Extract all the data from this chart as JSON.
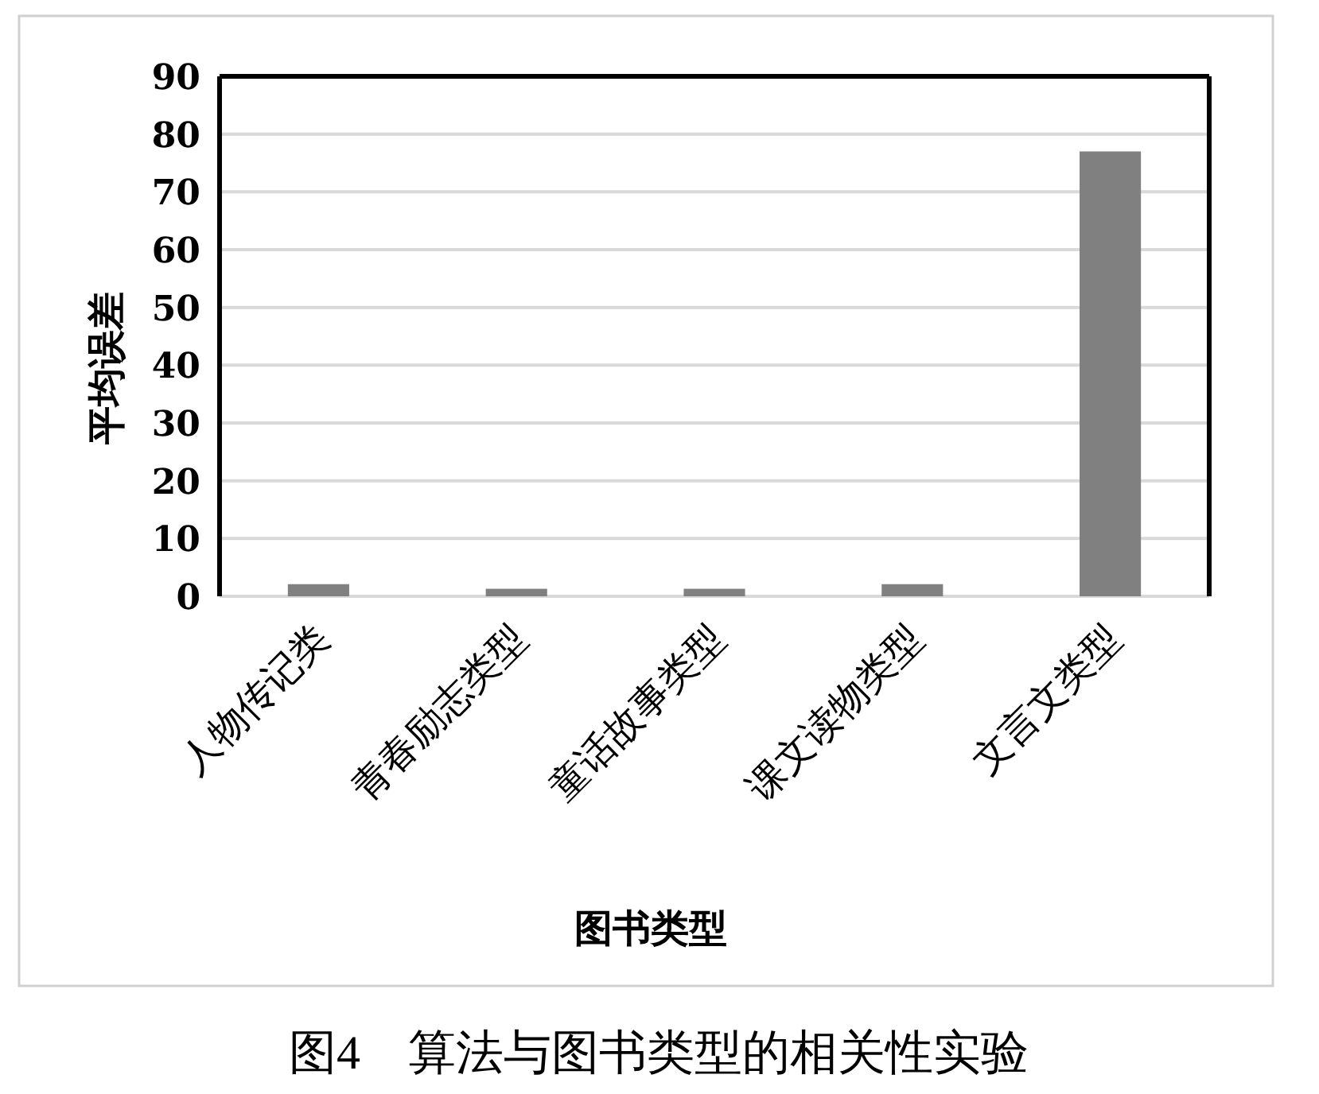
{
  "chart_data": {
    "type": "bar",
    "categories": [
      "人物传记类",
      "青春励志类型",
      "童话故事类型",
      "课文读物类型",
      "文言文类型"
    ],
    "values": [
      2.1,
      1.3,
      1.3,
      2.1,
      77
    ],
    "color": "#808080",
    "xlabel": "图书类型",
    "ylabel": "平均误差",
    "ylim": [
      0,
      90
    ],
    "yticks": [
      0,
      10,
      20,
      30,
      40,
      50,
      60,
      70,
      80,
      90
    ],
    "grid": "y",
    "annotations": [
      "图4　算法与图书类型的相关性实验"
    ]
  }
}
